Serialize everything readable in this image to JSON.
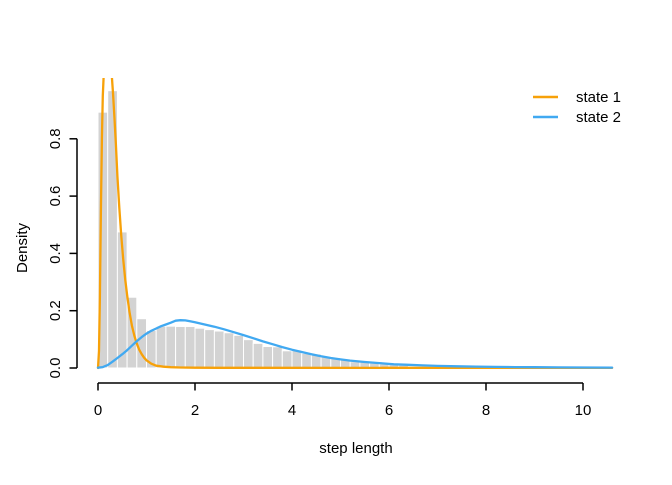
{
  "chart_data": {
    "type": "bar",
    "subtype": "histogram-with-density-curves",
    "title": "",
    "xlabel": "step length",
    "ylabel": "Density",
    "xlim": [
      -0.42,
      11.02
    ],
    "ylim": [
      -0.05,
      1.01
    ],
    "grid": false,
    "legend_position": "top-right",
    "x_ticks": [
      0,
      2,
      4,
      6,
      8,
      10
    ],
    "x_tick_labels": [
      "0",
      "2",
      "4",
      "6",
      "8",
      "10"
    ],
    "y_ticks": [
      0.0,
      0.2,
      0.4,
      0.6,
      0.8
    ],
    "y_tick_labels": [
      "0.0",
      "0.2",
      "0.4",
      "0.6",
      "0.8"
    ],
    "axis_color": "#000000",
    "histogram": {
      "bin_start": 0,
      "bin_width": 0.2,
      "bar_color": "#d3d3d3",
      "bar_border_color": "#ffffff",
      "densities": [
        0.893,
        0.968,
        0.475,
        0.247,
        0.172,
        0.131,
        0.146,
        0.146,
        0.145,
        0.145,
        0.139,
        0.134,
        0.129,
        0.123,
        0.114,
        0.099,
        0.086,
        0.075,
        0.074,
        0.06,
        0.063,
        0.051,
        0.049,
        0.04,
        0.036,
        0.028,
        0.022,
        0.022,
        0.017,
        0.014,
        0.012,
        0.01
      ]
    },
    "series": [
      {
        "name": "state 1",
        "type": "line",
        "color": "#f7a109",
        "points": [
          [
            0.0,
            0.0
          ],
          [
            0.02,
            0.06
          ],
          [
            0.04,
            0.25
          ],
          [
            0.06,
            0.55
          ],
          [
            0.08,
            0.8
          ],
          [
            0.1,
            0.95
          ],
          [
            0.12,
            1.03
          ],
          [
            0.16,
            1.09
          ],
          [
            0.2,
            1.11
          ],
          [
            0.24,
            1.09
          ],
          [
            0.28,
            1.03
          ],
          [
            0.31,
            0.96
          ],
          [
            0.34,
            0.87
          ],
          [
            0.37,
            0.78
          ],
          [
            0.4,
            0.67
          ],
          [
            0.44,
            0.56
          ],
          [
            0.48,
            0.46
          ],
          [
            0.52,
            0.38
          ],
          [
            0.56,
            0.31
          ],
          [
            0.6,
            0.255
          ],
          [
            0.65,
            0.195
          ],
          [
            0.7,
            0.148
          ],
          [
            0.75,
            0.112
          ],
          [
            0.8,
            0.085
          ],
          [
            0.85,
            0.064
          ],
          [
            0.9,
            0.048
          ],
          [
            0.95,
            0.036
          ],
          [
            1.0,
            0.027
          ],
          [
            1.1,
            0.015
          ],
          [
            1.2,
            0.008
          ],
          [
            1.35,
            0.0045
          ],
          [
            1.5,
            0.0028
          ],
          [
            1.7,
            0.0018
          ],
          [
            2.0,
            0.0012
          ],
          [
            2.5,
            0.0008
          ],
          [
            3.0,
            0.0006
          ],
          [
            10.6,
            0.0005
          ]
        ]
      },
      {
        "name": "state 2",
        "type": "line",
        "color": "#41a9f1",
        "points": [
          [
            0.0,
            0.001
          ],
          [
            0.1,
            0.003
          ],
          [
            0.2,
            0.01
          ],
          [
            0.3,
            0.022
          ],
          [
            0.4,
            0.035
          ],
          [
            0.5,
            0.048
          ],
          [
            0.6,
            0.062
          ],
          [
            0.7,
            0.078
          ],
          [
            0.8,
            0.094
          ],
          [
            0.9,
            0.108
          ],
          [
            1.0,
            0.12
          ],
          [
            1.1,
            0.13
          ],
          [
            1.2,
            0.138
          ],
          [
            1.3,
            0.146
          ],
          [
            1.4,
            0.152
          ],
          [
            1.5,
            0.158
          ],
          [
            1.6,
            0.165
          ],
          [
            1.7,
            0.167
          ],
          [
            1.8,
            0.166
          ],
          [
            1.9,
            0.163
          ],
          [
            2.0,
            0.16
          ],
          [
            2.2,
            0.152
          ],
          [
            2.4,
            0.144
          ],
          [
            2.6,
            0.135
          ],
          [
            2.8,
            0.125
          ],
          [
            3.0,
            0.115
          ],
          [
            3.2,
            0.104
          ],
          [
            3.4,
            0.093
          ],
          [
            3.6,
            0.083
          ],
          [
            3.8,
            0.073
          ],
          [
            4.0,
            0.064
          ],
          [
            4.2,
            0.056
          ],
          [
            4.4,
            0.048
          ],
          [
            4.6,
            0.041
          ],
          [
            4.8,
            0.035
          ],
          [
            5.0,
            0.03
          ],
          [
            5.2,
            0.026
          ],
          [
            5.5,
            0.021
          ],
          [
            5.8,
            0.017
          ],
          [
            6.1,
            0.013
          ],
          [
            6.4,
            0.011
          ],
          [
            6.7,
            0.009
          ],
          [
            7.0,
            0.0075
          ],
          [
            7.4,
            0.006
          ],
          [
            7.8,
            0.005
          ],
          [
            8.2,
            0.004
          ],
          [
            8.6,
            0.0033
          ],
          [
            9.0,
            0.0028
          ],
          [
            9.5,
            0.0022
          ],
          [
            10.0,
            0.0018
          ],
          [
            10.6,
            0.0014
          ]
        ]
      }
    ]
  }
}
